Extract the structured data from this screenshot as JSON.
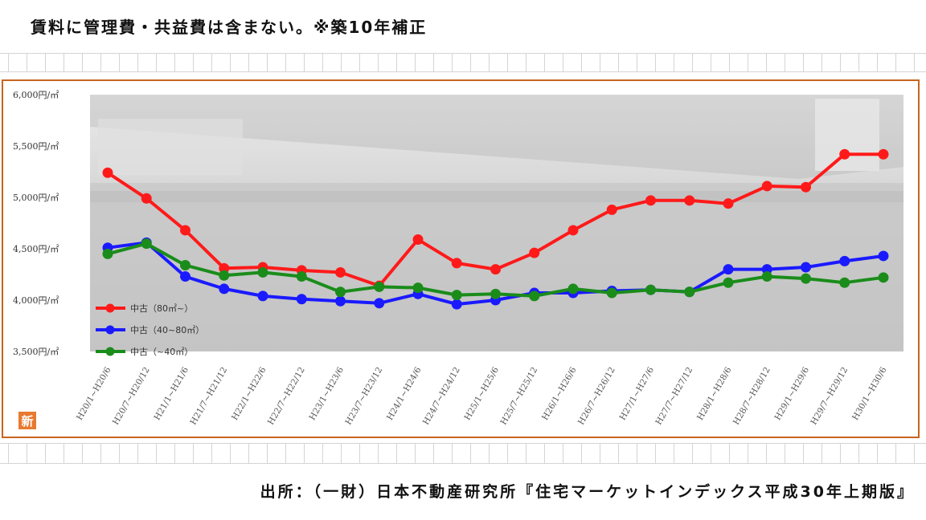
{
  "header": {
    "note": "賃料に管理費・共益費は含まない。※築10年補正"
  },
  "footer": {
    "source": "出所：（一財）日本不動産研究所『住宅マーケットインデックス平成30年上期版』"
  },
  "logo": {
    "glyph": "新"
  },
  "chart_data": {
    "type": "line",
    "categories": [
      "H20/1~H20/6",
      "H20/7~H20/12",
      "H21/1~H21/6",
      "H21/7~H21/12",
      "H22/1~H22/6",
      "H22/7~H22/12",
      "H23/1~H23/6",
      "H23/7~H23/12",
      "H24/1~H24/6",
      "H24/7~H24/12",
      "H25/1~H25/6",
      "H25/7~H25/12",
      "H26/1~H26/6",
      "H26/7~H26/12",
      "H27/1~H27/6",
      "H27/7~H27/12",
      "H28/1~H28/6",
      "H28/7~H28/12",
      "H29/1~H29/6",
      "H29/7~H29/12",
      "H30/1~H30/6"
    ],
    "ylim": [
      3500,
      6000
    ],
    "yticks": [
      3500,
      4000,
      4500,
      5000,
      5500,
      6000
    ],
    "ytick_labels": [
      "3,500円/㎡",
      "4,000円/㎡",
      "4,500円/㎡",
      "5,000円/㎡",
      "5,500円/㎡",
      "6,000円/㎡"
    ],
    "grid": false,
    "legend_position": "bottom-left",
    "series": [
      {
        "name": "中古（80㎡~）",
        "color": "#ff1a1a",
        "values": [
          5240,
          4990,
          4680,
          4310,
          4320,
          4290,
          4270,
          4140,
          4590,
          4360,
          4300,
          4460,
          4680,
          4880,
          4970,
          4970,
          4940,
          5110,
          5100,
          5420,
          5420
        ]
      },
      {
        "name": "中古（40~80㎡）",
        "color": "#1a1aff",
        "values": [
          4510,
          4560,
          4230,
          4110,
          4040,
          4010,
          3990,
          3970,
          4060,
          3960,
          4000,
          4070,
          4070,
          4090,
          4100,
          4080,
          4300,
          4300,
          4320,
          4380,
          4430
        ]
      },
      {
        "name": "中古（~40㎡）",
        "color": "#1a8c1a",
        "values": [
          4450,
          4550,
          4340,
          4240,
          4270,
          4230,
          4080,
          4130,
          4120,
          4050,
          4060,
          4040,
          4110,
          4070,
          4100,
          4080,
          4170,
          4230,
          4210,
          4170,
          4220
        ]
      }
    ]
  }
}
